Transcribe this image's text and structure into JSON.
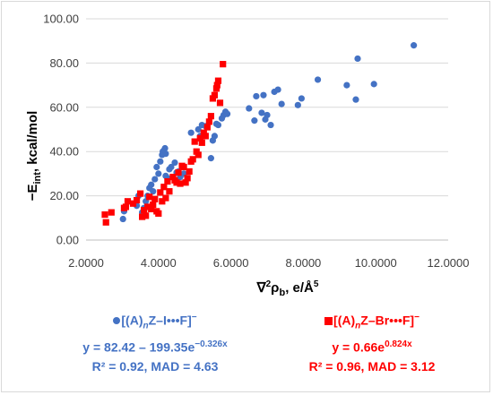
{
  "chart_data": {
    "type": "scatter",
    "title": "",
    "xlabel_parts": {
      "nabla": "∇",
      "sup1": "2",
      "rho": "ρ",
      "sub": "b",
      "unit": ", e/Å",
      "sup2": "5"
    },
    "ylabel_parts": {
      "minus": "−E",
      "sub": "int",
      "unit": ", kcal/mol"
    },
    "xlim": [
      2.0,
      12.0
    ],
    "ylim": [
      0.0,
      100.0
    ],
    "x_ticks": [
      "2.0000",
      "4.0000",
      "6.0000",
      "8.0000",
      "10.0000",
      "12.0000"
    ],
    "y_ticks": [
      "0.00",
      "20.00",
      "40.00",
      "60.00",
      "80.00",
      "100.00"
    ],
    "grid": "horizontal",
    "legend_placement": "bottom",
    "series": [
      {
        "marker": "circle",
        "color": "#4472c4",
        "legend": {
          "label_prefix": "[(A)",
          "label_n": "n",
          "label_suffix": "Z–I•••F]",
          "label_charge": "−",
          "fit_prefix": "y = 82.42 – 199.35e",
          "fit_exp": "−0.326x",
          "stats": "R² = 0.92, MAD = 4.63"
        },
        "points": [
          [
            3.02,
            9.5
          ],
          [
            3.05,
            13.0
          ],
          [
            3.4,
            15.5
          ],
          [
            3.45,
            20.0
          ],
          [
            3.55,
            12.5
          ],
          [
            3.6,
            14.5
          ],
          [
            3.65,
            17.5
          ],
          [
            3.7,
            20.0
          ],
          [
            3.75,
            23.5
          ],
          [
            3.8,
            25.0
          ],
          [
            3.85,
            22.0
          ],
          [
            3.9,
            27.5
          ],
          [
            3.95,
            33.0
          ],
          [
            4.0,
            30.0
          ],
          [
            4.05,
            35.5
          ],
          [
            4.1,
            38.5
          ],
          [
            4.12,
            40.0
          ],
          [
            4.15,
            40.5
          ],
          [
            4.18,
            41.5
          ],
          [
            4.2,
            39.0
          ],
          [
            4.2,
            29.0
          ],
          [
            4.25,
            28.0
          ],
          [
            4.3,
            32.0
          ],
          [
            4.35,
            33.0
          ],
          [
            4.45,
            35.0
          ],
          [
            4.5,
            30.5
          ],
          [
            4.55,
            31.0
          ],
          [
            4.6,
            28.5
          ],
          [
            4.7,
            30.0
          ],
          [
            4.9,
            48.5
          ],
          [
            5.1,
            50.0
          ],
          [
            5.15,
            47.0
          ],
          [
            5.2,
            52.0
          ],
          [
            5.3,
            51.5
          ],
          [
            5.45,
            37.0
          ],
          [
            5.5,
            45.0
          ],
          [
            5.55,
            47.0
          ],
          [
            5.6,
            52.5
          ],
          [
            5.65,
            52.0
          ],
          [
            5.75,
            55.0
          ],
          [
            5.8,
            56.5
          ],
          [
            5.85,
            58.0
          ],
          [
            5.9,
            57.0
          ],
          [
            6.5,
            59.5
          ],
          [
            6.65,
            54.0
          ],
          [
            6.7,
            65.0
          ],
          [
            6.85,
            57.5
          ],
          [
            6.9,
            65.5
          ],
          [
            6.95,
            54.5
          ],
          [
            7.0,
            56.5
          ],
          [
            7.1,
            52.0
          ],
          [
            7.2,
            67.0
          ],
          [
            7.3,
            68.0
          ],
          [
            7.4,
            61.5
          ],
          [
            7.85,
            61.0
          ],
          [
            7.95,
            64.0
          ],
          [
            8.4,
            72.5
          ],
          [
            9.2,
            70.0
          ],
          [
            9.45,
            63.5
          ],
          [
            9.5,
            82.0
          ],
          [
            9.95,
            70.5
          ],
          [
            11.05,
            88.0
          ]
        ]
      },
      {
        "marker": "square",
        "color": "#ff0000",
        "legend": {
          "label_prefix": "[(A)",
          "label_n": "n",
          "label_suffix": "Z–Br•••F]",
          "label_charge": "−",
          "fit_prefix": "y = 0.66e",
          "fit_exp": "0.824x",
          "stats": "R² = 0.96, MAD = 3.12"
        },
        "points": [
          [
            2.52,
            11.5
          ],
          [
            2.55,
            8.0
          ],
          [
            2.7,
            12.5
          ],
          [
            3.05,
            14.5
          ],
          [
            3.1,
            15.0
          ],
          [
            3.15,
            17.5
          ],
          [
            3.3,
            16.5
          ],
          [
            3.4,
            18.0
          ],
          [
            3.5,
            21.0
          ],
          [
            3.55,
            10.5
          ],
          [
            3.6,
            13.5
          ],
          [
            3.65,
            11.0
          ],
          [
            3.7,
            15.0
          ],
          [
            3.75,
            19.5
          ],
          [
            3.8,
            14.0
          ],
          [
            3.85,
            16.0
          ],
          [
            3.9,
            18.5
          ],
          [
            3.95,
            13.0
          ],
          [
            4.0,
            12.0
          ],
          [
            4.05,
            21.5
          ],
          [
            4.1,
            17.5
          ],
          [
            4.15,
            24.0
          ],
          [
            4.2,
            19.0
          ],
          [
            4.25,
            26.5
          ],
          [
            4.3,
            22.0
          ],
          [
            4.4,
            28.5
          ],
          [
            4.45,
            27.0
          ],
          [
            4.5,
            26.0
          ],
          [
            4.55,
            30.5
          ],
          [
            4.6,
            25.5
          ],
          [
            4.65,
            33.5
          ],
          [
            4.7,
            33.0
          ],
          [
            4.75,
            26.0
          ],
          [
            4.8,
            28.0
          ],
          [
            4.85,
            31.0
          ],
          [
            4.9,
            35.5
          ],
          [
            4.95,
            36.5
          ],
          [
            5.0,
            44.5
          ],
          [
            5.05,
            40.0
          ],
          [
            5.1,
            38.5
          ],
          [
            5.15,
            46.0
          ],
          [
            5.2,
            44.0
          ],
          [
            5.25,
            48.5
          ],
          [
            5.3,
            47.0
          ],
          [
            5.35,
            51.0
          ],
          [
            5.4,
            53.5
          ],
          [
            5.45,
            56.0
          ],
          [
            5.5,
            64.0
          ],
          [
            5.55,
            65.5
          ],
          [
            5.6,
            68.5
          ],
          [
            5.62,
            70.0
          ],
          [
            5.65,
            72.0
          ],
          [
            5.7,
            62.0
          ],
          [
            5.78,
            79.5
          ]
        ]
      }
    ]
  }
}
